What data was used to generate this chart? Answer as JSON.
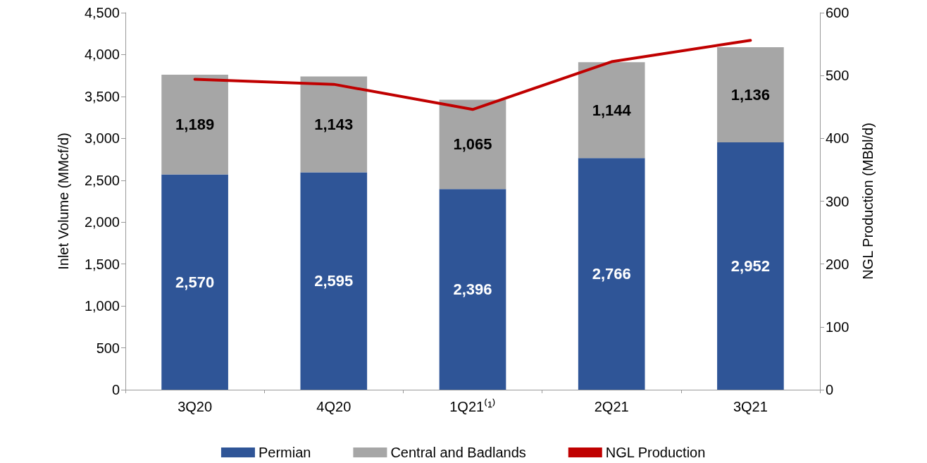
{
  "chart_data": {
    "type": "bar",
    "categories": [
      "3Q20",
      "4Q20",
      "1Q21⁽¹⁾",
      "2Q21",
      "3Q21"
    ],
    "stacked": true,
    "ylabel": "Inlet Volume (MMcf/d)",
    "y2label": "NGL Production (MBbl/d)",
    "series": [
      {
        "name": "Permian",
        "color": "#2f5597",
        "values": [
          2570,
          2595,
          2396,
          2766,
          2952
        ],
        "value_labels": [
          "2,570",
          "2,595",
          "2,396",
          "2,766",
          "2,952"
        ]
      },
      {
        "name": "Central and Badlands",
        "color": "#a6a6a6",
        "values": [
          1189,
          1143,
          1065,
          1144,
          1136
        ],
        "value_labels": [
          "1,189",
          "1,143",
          "1,065",
          "1,144",
          "1,136"
        ]
      },
      {
        "name": "NGL Production",
        "type": "line",
        "axis": "y2",
        "color": "#c00000",
        "marker": "none",
        "values": [
          494,
          486,
          446,
          522,
          556
        ]
      }
    ],
    "ylim": [
      0,
      4500
    ],
    "yticks": [
      {
        "value": 0,
        "label": "0"
      },
      {
        "value": 500,
        "label": "500"
      },
      {
        "value": 1000,
        "label": "1,000"
      },
      {
        "value": 1500,
        "label": "1,500"
      },
      {
        "value": 2000,
        "label": "2,000"
      },
      {
        "value": 2500,
        "label": "2,500"
      },
      {
        "value": 3000,
        "label": "3,000"
      },
      {
        "value": 3500,
        "label": "3,500"
      },
      {
        "value": 4000,
        "label": "4,000"
      },
      {
        "value": 4500,
        "label": "4,500"
      }
    ],
    "y2lim": [
      0,
      600
    ],
    "y2ticks": [
      0,
      100,
      200,
      300,
      400,
      500,
      600
    ],
    "grid": false,
    "legend": "bottom"
  }
}
